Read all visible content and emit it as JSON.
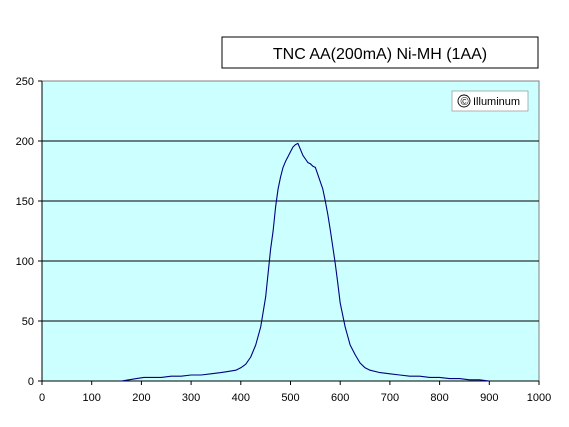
{
  "chart_data": {
    "type": "line",
    "title": "TNC AA(200mA) Ni-MH (1AA)",
    "watermark": "Illuminum",
    "copyright_symbol": "©",
    "xlabel": "",
    "ylabel": "",
    "xlim": [
      0,
      1000
    ],
    "ylim": [
      0,
      250
    ],
    "x_ticks": [
      0,
      100,
      200,
      300,
      400,
      500,
      600,
      700,
      800,
      900,
      1000
    ],
    "y_ticks": [
      0,
      50,
      100,
      150,
      200,
      250
    ],
    "grid": "horizontal",
    "legend": "none",
    "plot_background": "#ccffff",
    "line_color": "#000080",
    "series": [
      {
        "x": [
          160,
          175,
          190,
          205,
          220,
          240,
          260,
          280,
          300,
          320,
          340,
          360,
          375,
          390,
          400,
          410,
          420,
          430,
          440,
          450,
          460,
          465,
          470,
          475,
          480,
          485,
          490,
          495,
          500,
          505,
          510,
          515,
          520,
          525,
          530,
          535,
          540,
          545,
          550,
          555,
          560,
          565,
          570,
          575,
          580,
          585,
          590,
          595,
          600,
          610,
          620,
          630,
          640,
          650,
          660,
          680,
          700,
          720,
          740,
          760,
          780,
          800,
          820,
          840,
          860,
          880,
          900
        ],
        "y": [
          0,
          1,
          2,
          3,
          3,
          3,
          4,
          4,
          5,
          5,
          6,
          7,
          8,
          9,
          11,
          14,
          20,
          30,
          45,
          70,
          110,
          125,
          145,
          160,
          170,
          178,
          183,
          187,
          191,
          195,
          197,
          198,
          193,
          188,
          185,
          182,
          181,
          179,
          178,
          172,
          166,
          160,
          150,
          139,
          126,
          112,
          98,
          82,
          65,
          45,
          30,
          22,
          15,
          11,
          9,
          7,
          6,
          5,
          4,
          4,
          3,
          3,
          2,
          2,
          1,
          1,
          0
        ]
      }
    ]
  }
}
